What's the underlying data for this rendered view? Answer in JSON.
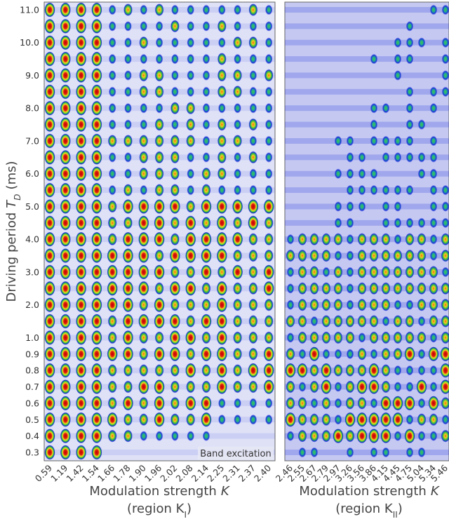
{
  "y_label_parts": [
    "Driving period",
    "T",
    "D",
    "(ms)"
  ],
  "y_categories": [
    "0.3",
    "0.4",
    "0.5",
    "0.6",
    "0.7",
    "0.8",
    "0.9",
    "1.0",
    null,
    "2.0",
    null,
    "3.0",
    null,
    "4.0",
    null,
    "5.0",
    null,
    "6.0",
    null,
    "7.0",
    null,
    "8.0",
    null,
    "9.0",
    null,
    "10.0",
    null,
    "11.0"
  ],
  "left_panel": {
    "x_categories": [
      "0.59",
      "1.19",
      "1.42",
      "1.54",
      "1.66",
      "1.78",
      "1.90",
      "1.96",
      "2.02",
      "2.08",
      "2.14",
      "2.25",
      "2.31",
      "2.37",
      "2.40"
    ],
    "x_label_parts": [
      "Modulation strength",
      "K"
    ],
    "region_parts": [
      "(region K",
      "I",
      ")"
    ],
    "annotation": "Band excitation"
  },
  "right_panel": {
    "x_categories": [
      "2.46",
      "2.55",
      "2.67",
      "2.79",
      "2.97",
      "3.26",
      "3.56",
      "3.86",
      "4.15",
      "4.45",
      "4.75",
      "5.04",
      "5.34",
      "5.46"
    ],
    "x_label_parts": [
      "Modulation strength",
      "K"
    ],
    "region_parts": [
      "(region K",
      "II",
      ")"
    ]
  }
}
